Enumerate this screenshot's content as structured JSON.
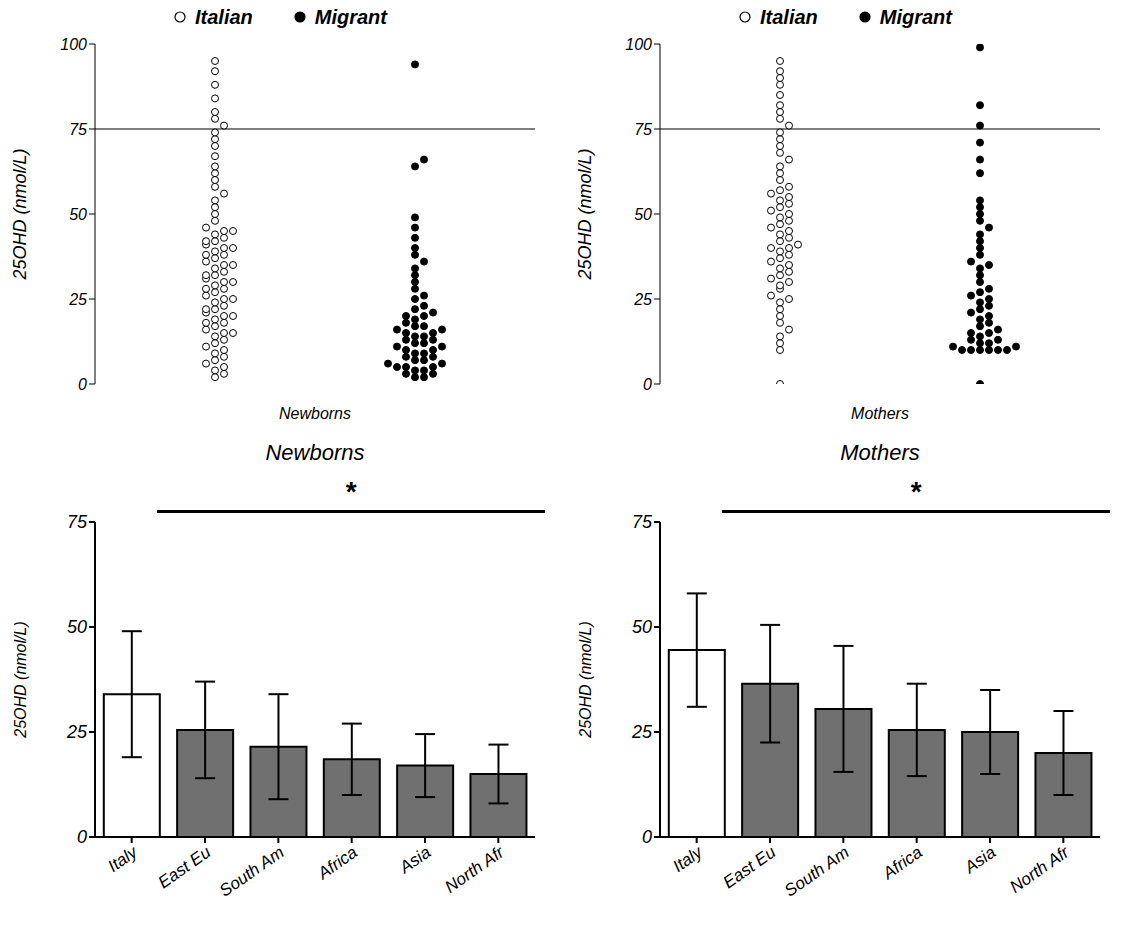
{
  "chart_data": [
    {
      "type": "scatter",
      "x_label": "Newborns",
      "y_label": "25OHD (nmol/L)",
      "ylim": [
        0,
        100
      ],
      "yticks": [
        0,
        25,
        50,
        75,
        100
      ],
      "hline": 75,
      "tick_labels": "y",
      "legend": "top",
      "series": [
        {
          "name": "Italian",
          "color": "#000000",
          "marker": "open",
          "values": [
            2,
            3,
            4,
            5,
            6,
            7,
            8,
            9,
            10,
            11,
            12,
            13,
            14,
            15,
            16,
            17,
            18,
            19,
            20,
            21,
            22,
            23,
            24,
            25,
            26,
            27,
            28,
            29,
            30,
            31,
            32,
            33,
            34,
            35,
            36,
            37,
            38,
            39,
            40,
            41,
            42,
            43,
            44,
            45,
            46,
            48,
            50,
            52,
            54,
            56,
            58,
            60,
            62,
            64,
            67,
            70,
            72,
            74,
            76,
            78,
            80,
            84,
            88,
            92,
            95,
            15,
            18,
            20,
            22,
            25,
            28,
            30,
            32,
            35,
            38,
            40,
            42,
            45
          ]
        },
        {
          "name": "Migrant",
          "color": "#000000",
          "marker": "filled",
          "values": [
            2,
            2,
            3,
            3,
            4,
            4,
            5,
            5,
            5,
            6,
            6,
            7,
            7,
            8,
            8,
            9,
            9,
            10,
            10,
            11,
            11,
            12,
            12,
            13,
            13,
            14,
            14,
            15,
            15,
            16,
            16,
            17,
            17,
            18,
            19,
            20,
            20,
            21,
            22,
            23,
            25,
            26,
            28,
            30,
            32,
            34,
            36,
            38,
            40,
            43,
            46,
            49,
            64,
            66,
            94
          ]
        }
      ]
    },
    {
      "type": "scatter",
      "x_label": "Mothers",
      "y_label": "25OHD (nmol/L)",
      "ylim": [
        0,
        100
      ],
      "yticks": [
        0,
        25,
        50,
        75,
        100
      ],
      "hline": 75,
      "tick_labels": "y",
      "legend": "top",
      "series": [
        {
          "name": "Italian",
          "color": "#000000",
          "marker": "open",
          "values": [
            0,
            10,
            12,
            14,
            16,
            18,
            20,
            22,
            24,
            25,
            26,
            28,
            29,
            30,
            31,
            32,
            33,
            34,
            35,
            36,
            37,
            38,
            39,
            40,
            40,
            41,
            42,
            43,
            44,
            45,
            46,
            47,
            48,
            49,
            50,
            51,
            52,
            53,
            54,
            55,
            56,
            57,
            58,
            60,
            62,
            64,
            66,
            68,
            70,
            72,
            74,
            76,
            78,
            80,
            82,
            85,
            88,
            90,
            92,
            95
          ]
        },
        {
          "name": "Migrant",
          "color": "#000000",
          "marker": "filled",
          "values": [
            0,
            10,
            10,
            10,
            10,
            10,
            10,
            11,
            11,
            12,
            12,
            13,
            13,
            14,
            15,
            15,
            16,
            17,
            18,
            19,
            20,
            21,
            22,
            23,
            24,
            25,
            26,
            27,
            28,
            30,
            32,
            34,
            35,
            36,
            38,
            40,
            42,
            44,
            46,
            48,
            50,
            52,
            54,
            62,
            66,
            71,
            76,
            82,
            99
          ]
        }
      ]
    },
    {
      "type": "bar",
      "title": "Newborns",
      "y_label": "25OHD (nmol/L)",
      "categories": [
        "Italy",
        "East Eu",
        "South Am",
        "Africa",
        "Asia",
        "North Afr"
      ],
      "values": [
        34,
        25.5,
        21.5,
        18.5,
        17,
        15
      ],
      "error": [
        15,
        11.5,
        12.5,
        8.5,
        7.5,
        7
      ],
      "colors": [
        "#ffffff",
        "#707070",
        "#707070",
        "#707070",
        "#707070",
        "#707070"
      ],
      "ylim": [
        0,
        75
      ],
      "yticks": [
        0,
        25,
        50,
        75
      ],
      "significance": "*"
    },
    {
      "type": "bar",
      "title": "Mothers",
      "y_label": "25OHD (nmol/L)",
      "categories": [
        "Italy",
        "East Eu",
        "South Am",
        "Africa",
        "Asia",
        "North Afr"
      ],
      "values": [
        44.5,
        36.5,
        30.5,
        25.5,
        25,
        20
      ],
      "error": [
        13.5,
        14,
        15,
        11,
        10,
        10
      ],
      "colors": [
        "#ffffff",
        "#707070",
        "#707070",
        "#707070",
        "#707070",
        "#707070"
      ],
      "ylim": [
        0,
        75
      ],
      "yticks": [
        0,
        25,
        50,
        75
      ],
      "significance": "*"
    }
  ]
}
